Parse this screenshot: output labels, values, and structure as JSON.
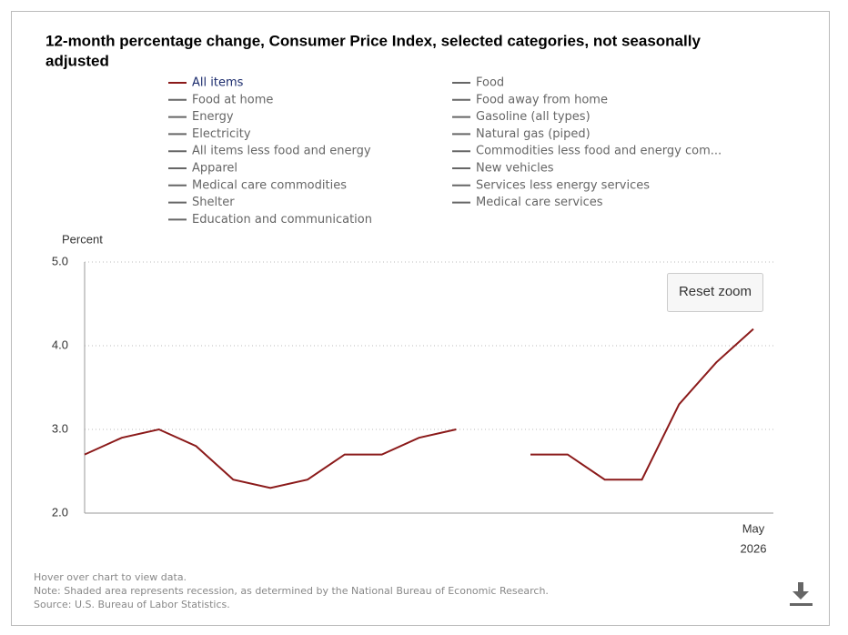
{
  "chart_data": {
    "type": "line",
    "title": [
      "12-month percentage change, Consumer Price Index, selected categories, not seasonally",
      "adjusted"
    ],
    "y_label": "Percent",
    "categories": [
      null,
      null,
      null,
      null,
      null,
      null,
      null,
      null,
      null,
      null,
      null,
      null,
      null,
      null,
      null,
      null,
      null,
      null,
      "May"
    ],
    "year_label": "2026",
    "series": [
      {
        "name": "All items",
        "color": "#8b1a1a",
        "visible": true,
        "values": [
          2.7,
          2.9,
          3.0,
          2.8,
          2.4,
          2.3,
          2.4,
          2.7,
          2.7,
          2.9,
          3.0,
          null,
          2.7,
          2.7,
          2.4,
          2.4,
          3.3,
          3.8,
          4.2
        ]
      },
      {
        "name": "Food",
        "color": "#666666",
        "visible": false
      },
      {
        "name": "Food at home",
        "color": "#666666",
        "visible": false
      },
      {
        "name": "Food away from home",
        "color": "#666666",
        "visible": false
      },
      {
        "name": "Energy",
        "color": "#666666",
        "visible": false
      },
      {
        "name": "Gasoline (all types)",
        "color": "#666666",
        "visible": false
      },
      {
        "name": "Electricity",
        "color": "#666666",
        "visible": false
      },
      {
        "name": "Natural gas (piped)",
        "color": "#666666",
        "visible": false
      },
      {
        "name": "All items less food and energy",
        "color": "#666666",
        "visible": false
      },
      {
        "name": "Commodities less food and energy com...",
        "color": "#666666",
        "visible": false
      },
      {
        "name": "Apparel",
        "color": "#666666",
        "visible": false
      },
      {
        "name": "New vehicles",
        "color": "#666666",
        "visible": false
      },
      {
        "name": "Medical care commodities",
        "color": "#666666",
        "visible": false
      },
      {
        "name": "Services less energy services",
        "color": "#666666",
        "visible": false
      },
      {
        "name": "Shelter",
        "color": "#666666",
        "visible": false
      },
      {
        "name": "Medical care services",
        "color": "#666666",
        "visible": false
      },
      {
        "name": "Education and communication",
        "color": "#666666",
        "visible": false
      }
    ],
    "ylim": [
      2.0,
      5.0
    ],
    "yticks": [
      {
        "value": 2,
        "label": "2.0"
      },
      {
        "value": 3,
        "label": "3.0"
      },
      {
        "value": 4,
        "label": "4.0"
      },
      {
        "value": 5,
        "label": "5.0"
      }
    ],
    "grid": true,
    "reset_button": "Reset zoom",
    "notes": [
      "Hover over chart to view data.",
      "Note: Shaded area represents recession, as determined by the National Bureau of Economic Research.",
      "Source: U.S. Bureau of Labor Statistics."
    ]
  }
}
